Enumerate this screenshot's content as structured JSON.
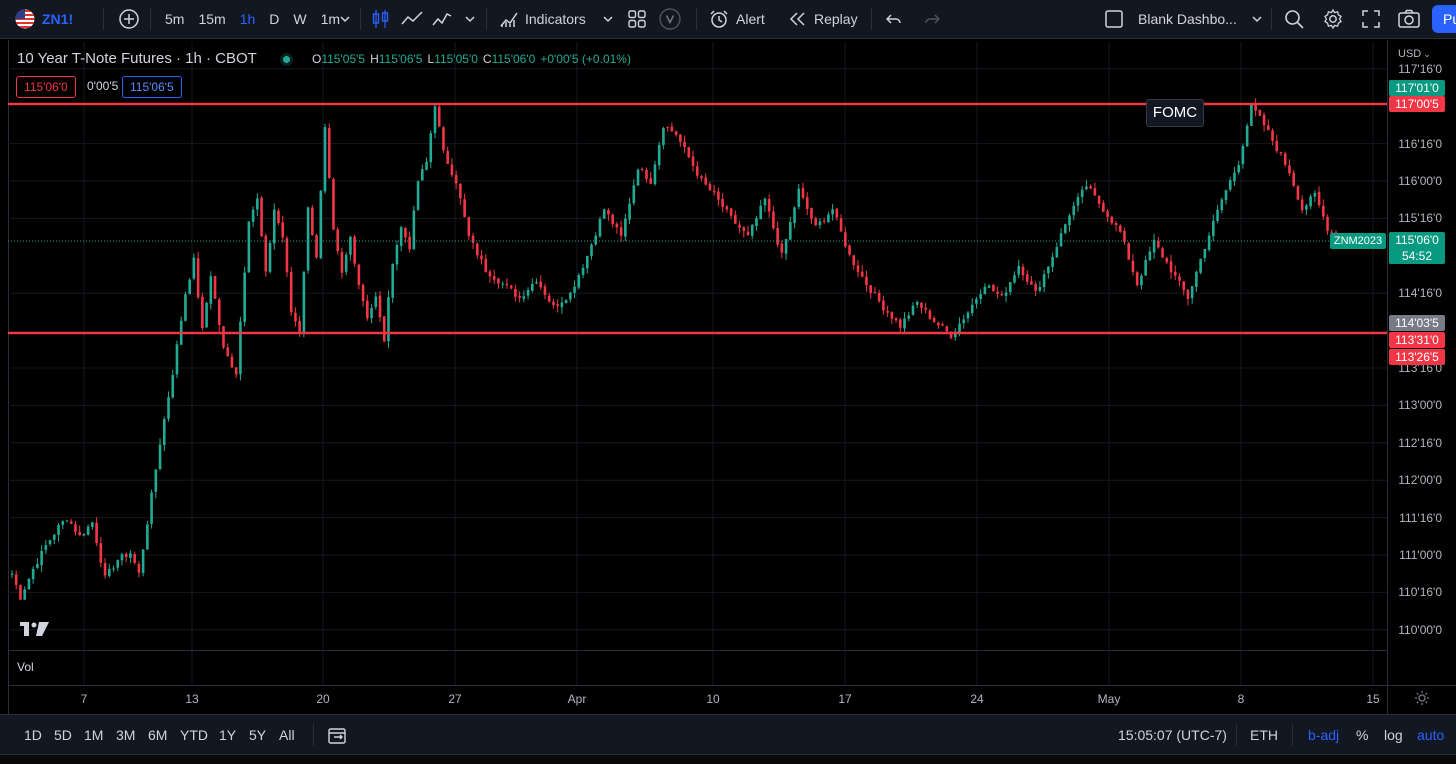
{
  "toolbar": {
    "symbol": "ZN1!",
    "timeframes": [
      "5m",
      "15m",
      "1h",
      "D",
      "W",
      "1m"
    ],
    "active_timeframe": "1h",
    "indicators_label": "Indicators",
    "alert_label": "Alert",
    "replay_label": "Replay",
    "layout_name": "Blank Dashbo...",
    "publish_label": "Pu",
    "accent": "#2962ff"
  },
  "legend": {
    "title": "10 Year T-Note Futures · 1h · CBOT",
    "open_key": "O",
    "open": "115'05'5",
    "high_key": "H",
    "high": "115'06'5",
    "low_key": "L",
    "low": "115'05'0",
    "close_key": "C",
    "close": "115'06'0",
    "change": "+0'00'5 (+0.01%)",
    "sell_price": "115'06'0",
    "spread": "0'00'5",
    "buy_price": "115'06'5"
  },
  "axis": {
    "currency": "USD",
    "price_labels": [
      "117'16'0",
      "116'16'0",
      "116'00'0",
      "115'16'0",
      "114'16'0",
      "113'16'0",
      "113'00'0",
      "112'16'0",
      "112'00'0",
      "111'16'0",
      "111'00'0",
      "110'16'0",
      "110'00'0"
    ],
    "date_labels": [
      "7",
      "13",
      "20",
      "27",
      "Apr",
      "10",
      "17",
      "24",
      "May",
      "8",
      "15"
    ]
  },
  "price_tags": {
    "top_green": "117'01'0",
    "resistance": "117'00'5",
    "last": "115'06'0",
    "countdown": "54:52",
    "contract": "ZNM2023",
    "crosshair": "114'03'5",
    "support_a": "113'31'0",
    "support_b": "113'26'5"
  },
  "annotation": {
    "fomc_label": "FOMC"
  },
  "volume_label": "Vol",
  "chart_data": {
    "type": "candlestick",
    "title": "10 Year T-Note Futures · 1h · CBOT",
    "ylim": [
      "110'00'0",
      "117'16'0"
    ],
    "horizontal_lines": [
      "117'00'5",
      "113'31'0"
    ],
    "line_color": "#f23645",
    "up_color": "#22ab94",
    "down_color": "#f23645",
    "path": [
      [
        0,
        "110'24'0"
      ],
      [
        2,
        "110'14'0"
      ],
      [
        5,
        "110'26'0"
      ],
      [
        8,
        "111'04'0"
      ],
      [
        11,
        "111'12'0"
      ],
      [
        13,
        "111'16'0"
      ],
      [
        16,
        "111'08'0"
      ],
      [
        19,
        "111'14'0"
      ],
      [
        22,
        "110'22'0"
      ],
      [
        25,
        "110'30'0"
      ],
      [
        28,
        "111'01'0"
      ],
      [
        30,
        "110'24'0"
      ],
      [
        32,
        "111'14'0"
      ],
      [
        35,
        "112'16'0"
      ],
      [
        38,
        "113'14'0"
      ],
      [
        41,
        "114'16'0"
      ],
      [
        43,
        "114'30'0"
      ],
      [
        45,
        "114'00'0"
      ],
      [
        47,
        "114'24'0"
      ],
      [
        50,
        "113'24'0"
      ],
      [
        53,
        "113'14'0"
      ],
      [
        56,
        "115'16'0"
      ],
      [
        58,
        "115'24'0"
      ],
      [
        60,
        "114'24'0"
      ],
      [
        62,
        "115'20'0"
      ],
      [
        64,
        "115'08'0"
      ],
      [
        66,
        "114'08'0"
      ],
      [
        68,
        "114'00'0"
      ],
      [
        70,
        "115'20'0"
      ],
      [
        72,
        "115'00'0"
      ],
      [
        74,
        "116'22'0"
      ],
      [
        76,
        "115'10'0"
      ],
      [
        78,
        "114'24'0"
      ],
      [
        80,
        "115'08'0"
      ],
      [
        82,
        "114'20'0"
      ],
      [
        84,
        "114'06'0"
      ],
      [
        86,
        "114'14'0"
      ],
      [
        88,
        "113'28'0"
      ],
      [
        90,
        "114'30'0"
      ],
      [
        92,
        "115'12'0"
      ],
      [
        94,
        "115'04'0"
      ],
      [
        96,
        "116'00'0"
      ],
      [
        98,
        "116'08'0"
      ],
      [
        100,
        "117'01'0"
      ],
      [
        102,
        "116'12'0"
      ],
      [
        105,
        "116'00'0"
      ],
      [
        108,
        "115'08'0"
      ],
      [
        112,
        "114'26'0"
      ],
      [
        116,
        "114'20'0"
      ],
      [
        120,
        "114'14'0"
      ],
      [
        124,
        "114'22'0"
      ],
      [
        128,
        "114'10'0"
      ],
      [
        132,
        "114'16'0"
      ],
      [
        136,
        "115'00'0"
      ],
      [
        140,
        "115'20'0"
      ],
      [
        144,
        "115'08'0"
      ],
      [
        148,
        "116'06'0"
      ],
      [
        151,
        "116'00'0"
      ],
      [
        154,
        "116'24'0"
      ],
      [
        157,
        "116'20'0"
      ],
      [
        160,
        "116'10'0"
      ],
      [
        163,
        "116'00'0"
      ],
      [
        166,
        "115'26'0"
      ],
      [
        170,
        "115'16'0"
      ],
      [
        174,
        "115'08'0"
      ],
      [
        178,
        "115'24'0"
      ],
      [
        182,
        "115'00'0"
      ],
      [
        186,
        "115'28'0"
      ],
      [
        190,
        "115'12'0"
      ],
      [
        194,
        "115'20'0"
      ],
      [
        198,
        "115'00'0"
      ],
      [
        202,
        "114'20'0"
      ],
      [
        206,
        "114'10'0"
      ],
      [
        210,
        "114'02'0"
      ],
      [
        214,
        "114'12'0"
      ],
      [
        218,
        "114'04'0"
      ],
      [
        222,
        "113'30'0"
      ],
      [
        226,
        "114'08'0"
      ],
      [
        230,
        "114'20'0"
      ],
      [
        234,
        "114'14'0"
      ],
      [
        238,
        "114'28'0"
      ],
      [
        242,
        "114'16'0"
      ],
      [
        246,
        "115'00'0"
      ],
      [
        250,
        "115'18'0"
      ],
      [
        254,
        "115'30'0"
      ],
      [
        258,
        "115'20'0"
      ],
      [
        262,
        "115'10'0"
      ],
      [
        266,
        "114'20'0"
      ],
      [
        270,
        "115'06'0"
      ],
      [
        274,
        "114'26'0"
      ],
      [
        278,
        "114'14'0"
      ],
      [
        282,
        "115'04'0"
      ],
      [
        286,
        "115'24'0"
      ],
      [
        290,
        "116'08'0"
      ],
      [
        293,
        "117'00'0"
      ],
      [
        296,
        "116'24'0"
      ],
      [
        299,
        "116'14'0"
      ],
      [
        302,
        "116'04'0"
      ],
      [
        305,
        "115'20'0"
      ],
      [
        308,
        "115'26'0"
      ],
      [
        311,
        "115'12'0"
      ],
      [
        314,
        "115'06'0"
      ],
      [
        316,
        "115'06'0"
      ]
    ],
    "fomc_bar": 293
  },
  "bottom": {
    "ranges": [
      "1D",
      "5D",
      "1M",
      "3M",
      "6M",
      "YTD",
      "1Y",
      "5Y",
      "All"
    ],
    "time": "15:05:07 (UTC-7)",
    "session": "ETH",
    "badj": "b-adj",
    "percent": "%",
    "log": "log",
    "auto": "auto"
  }
}
